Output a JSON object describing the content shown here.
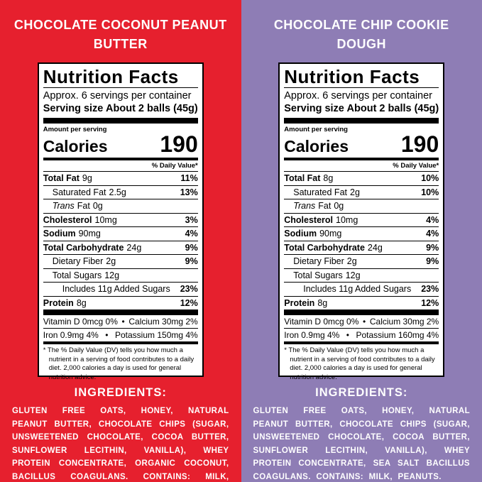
{
  "colors": {
    "left_bg": "#e6202e",
    "right_bg": "#8e7db5",
    "label_bg": "#ffffff",
    "label_ink": "#000000",
    "text_on_bg": "#ffffff"
  },
  "panels": [
    {
      "title_line1": "CHOCOLATE COCONUT PEANUT",
      "title_line2": "BUTTER",
      "label": {
        "title": "Nutrition Facts",
        "servings": "Approx. 6 servings per container",
        "serving_size_label": "Serving size",
        "serving_size_value": "About 2 balls (45g)",
        "amount_per_serving": "Amount per serving",
        "calories_label": "Calories",
        "calories_value": "190",
        "daily_value_header": "% Daily Value*",
        "rows": [
          {
            "name": "Total Fat",
            "amount": "9g",
            "dv": "11%"
          },
          {
            "name": "Saturated Fat",
            "amount": "2.5g",
            "dv": "13%"
          },
          {
            "name_italic": "Trans",
            "name": "Fat",
            "amount": "0g",
            "dv": ""
          },
          {
            "name": "Cholesterol",
            "amount": "10mg",
            "dv": "3%"
          },
          {
            "name": "Sodium",
            "amount": "90mg",
            "dv": "4%"
          },
          {
            "name": "Total Carbohydrate",
            "amount": "24g",
            "dv": "9%"
          },
          {
            "name": "Dietary Fiber",
            "amount": "2g",
            "dv": "9%"
          },
          {
            "name": "Total Sugars",
            "amount": "12g",
            "dv": ""
          },
          {
            "name": "Includes 11g Added Sugars",
            "amount": "",
            "dv": "23%"
          },
          {
            "name": "Protein",
            "amount": "8g",
            "dv": "12%"
          }
        ],
        "micros": [
          {
            "left": "Vitamin D 0mcg 0%",
            "sep": "•",
            "right": "Calcium 30mg 2%"
          },
          {
            "left": "Iron 0.9mg 4%",
            "sep": "•",
            "right": "Potassium 150mg 4%"
          }
        ],
        "footnote": "* The % Daily Value (DV) tells you how much a nutrient in a serving of food contributes to a daily diet. 2,000 calories a day is used for general nutrition advice."
      },
      "ingredients_heading": "INGREDIENTS:",
      "ingredients_text": "GLUTEN FREE OATS, HONEY, NATURAL PEANUT BUTTER, CHOCOLATE CHIPS (SUGAR, UNSWEETENED CHOCOLATE, COCOA BUTTER, SUNFLOWER LECITHIN, VANILLA), WHEY PROTEIN CONCENTRATE, ORGANIC COCONUT, BACILLUS COAGULANS. CONTAINS: MILK, PEANUTS, TREE NUTS."
    },
    {
      "title_line1": "CHOCOLATE CHIP COOKIE",
      "title_line2": "DOUGH",
      "label": {
        "title": "Nutrition Facts",
        "servings": "Approx. 6 servings per container",
        "serving_size_label": "Serving size",
        "serving_size_value": "About 2 balls (45g)",
        "amount_per_serving": "Amount per serving",
        "calories_label": "Calories",
        "calories_value": "190",
        "daily_value_header": "% Daily Value*",
        "rows": [
          {
            "name": "Total Fat",
            "amount": "8g",
            "dv": "10%"
          },
          {
            "name": "Saturated Fat",
            "amount": "2g",
            "dv": "10%"
          },
          {
            "name_italic": "Trans",
            "name": "Fat",
            "amount": "0g",
            "dv": ""
          },
          {
            "name": "Cholesterol",
            "amount": "10mg",
            "dv": "4%"
          },
          {
            "name": "Sodium",
            "amount": "90mg",
            "dv": "4%"
          },
          {
            "name": "Total Carbohydrate",
            "amount": "24g",
            "dv": "9%"
          },
          {
            "name": "Dietary Fiber",
            "amount": "2g",
            "dv": "9%"
          },
          {
            "name": "Total Sugars",
            "amount": "12g",
            "dv": ""
          },
          {
            "name": "Includes 11g Added Sugars",
            "amount": "",
            "dv": "23%"
          },
          {
            "name": "Protein",
            "amount": "8g",
            "dv": "12%"
          }
        ],
        "micros": [
          {
            "left": "Vitamin D 0mcg 0%",
            "sep": "•",
            "right": "Calcium 30mg 2%"
          },
          {
            "left": "Iron 0.9mg 4%",
            "sep": "•",
            "right": "Potassium 160mg 4%"
          }
        ],
        "footnote": "* The % Daily Value (DV) tells you how much a nutrient in a serving of food contributes to a daily diet. 2,000 calories a day is used for general nutrition advice."
      },
      "ingredients_heading": "INGREDIENTS:",
      "ingredients_text": "GLUTEN FREE OATS, HONEY, NATURAL PEANUT BUTTER, CHOCOLATE CHIPS (SUGAR, UNSWEETENED CHOCOLATE, COCOA BUTTER, SUNFLOWER LECITHIN, VANILLA), WHEY PROTEIN CONCENTRATE, SEA SALT BACILLUS COAGULANS. CONTAINS: MILK, PEANUTS."
    }
  ]
}
